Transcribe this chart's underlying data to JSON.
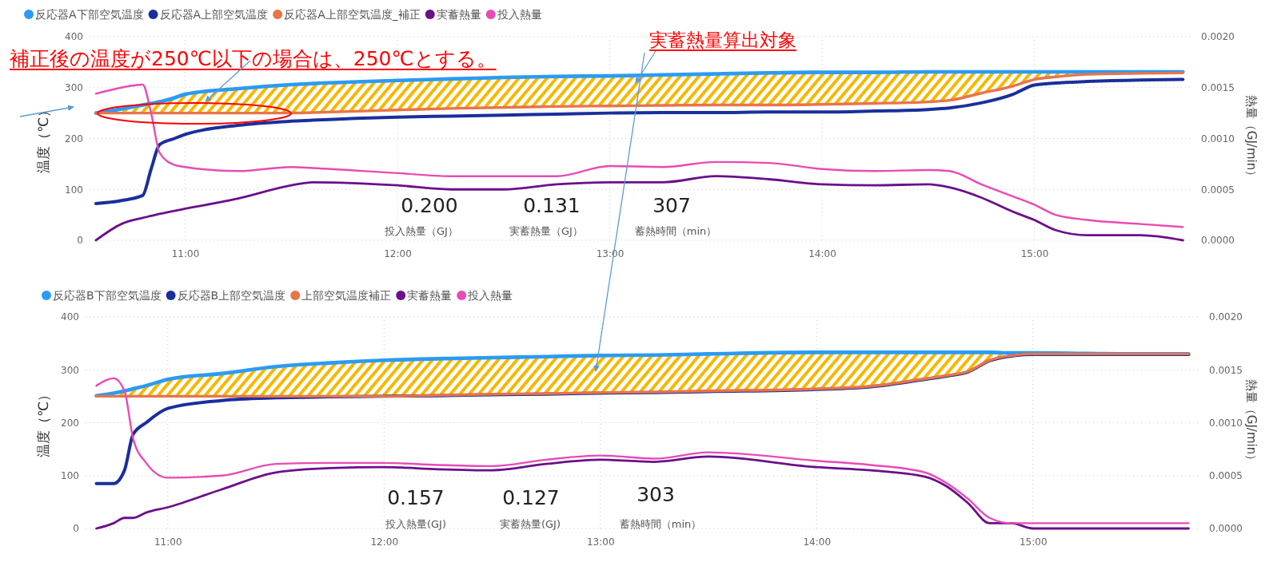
{
  "chart_data": [
    {
      "type": "line",
      "x": [
        10.58,
        10.7,
        10.8,
        10.84,
        10.88,
        10.95,
        11.0,
        11.25,
        11.5,
        11.6,
        12.0,
        12.25,
        12.5,
        12.75,
        13.0,
        13.25,
        13.5,
        13.75,
        14.0,
        14.25,
        14.5,
        14.6,
        14.75,
        14.9,
        15.0,
        15.1,
        15.25,
        15.5,
        15.7
      ],
      "series": [
        {
          "name": "反応器A下部空気温度",
          "color": "#2b9bf4",
          "values": [
            250,
            258,
            266,
            269,
            272,
            280,
            287,
            298,
            306,
            308,
            314,
            317,
            320,
            322,
            323,
            325,
            327,
            329,
            330,
            330,
            331,
            331,
            331,
            331,
            331,
            331,
            331,
            331,
            331
          ]
        },
        {
          "name": "反応器A上部空気温度",
          "color": "#1a2f9c",
          "values": [
            72,
            78,
            88,
            140,
            188,
            200,
            208,
            226,
            234,
            236,
            242,
            244,
            246,
            248,
            250,
            251,
            251,
            252,
            252,
            254,
            257,
            260,
            270,
            287,
            305,
            309,
            312,
            315,
            316
          ]
        },
        {
          "name": "反応器A上部空気温度_補正",
          "color": "#e8744a",
          "values": [
            250,
            250,
            250,
            250,
            250,
            250,
            250,
            250,
            250,
            251,
            256,
            259,
            261,
            263,
            264,
            265,
            266,
            266,
            267,
            269,
            272,
            275,
            289,
            303,
            316,
            321,
            326,
            328,
            329
          ],
          "lower": [
            250,
            250,
            250,
            250,
            250,
            250,
            250,
            250,
            250,
            251,
            256,
            259,
            261,
            263,
            264,
            265,
            266,
            266,
            267,
            269,
            272,
            275,
            289,
            303,
            316,
            321,
            326,
            328,
            329
          ],
          "upper": [
            250,
            258,
            266,
            269,
            272,
            280,
            287,
            298,
            306,
            308,
            314,
            317,
            320,
            322,
            323,
            325,
            327,
            329,
            330,
            330,
            331,
            331,
            331,
            331,
            331,
            331,
            331,
            331,
            331
          ]
        },
        {
          "name": "実蓄熱量",
          "color": "#6b0f8a",
          "axis": "y2",
          "values": [
            0,
            0.00016,
            0.00022,
            0.00024,
            0.00026,
            0.00029,
            0.00031,
            0.00041,
            0.00054,
            0.00057,
            0.00054,
            0.0005,
            0.0005,
            0.00055,
            0.00057,
            0.00057,
            0.00063,
            0.0006,
            0.00055,
            0.00054,
            0.00055,
            0.00052,
            0.00042,
            0.00028,
            0.0002,
            0.0001,
            5e-05,
            5e-05,
            0
          ]
        },
        {
          "name": "投入熱量",
          "color": "#e84bb4",
          "axis": "y2",
          "values": [
            0.00144,
            0.0015,
            0.00153,
            0.00125,
            0.00086,
            0.00074,
            0.00072,
            0.00068,
            0.00072,
            0.00071,
            0.00066,
            0.00063,
            0.00063,
            0.00063,
            0.00073,
            0.00072,
            0.00077,
            0.00076,
            0.0007,
            0.00068,
            0.00069,
            0.00068,
            0.00055,
            0.00043,
            0.00035,
            0.00025,
            0.0002,
            0.00016,
            0.00013
          ]
        }
      ],
      "xlim": [
        10.55,
        15.74
      ],
      "xticks": [
        {
          "value": 11,
          "label": "11:00"
        },
        {
          "value": 12,
          "label": "12:00"
        },
        {
          "value": 13,
          "label": "13:00"
        },
        {
          "value": 14,
          "label": "14:00"
        },
        {
          "value": 15,
          "label": "15:00"
        }
      ],
      "ylim": [
        0,
        400
      ],
      "yticks": [
        0,
        100,
        200,
        300,
        400
      ],
      "y2lim": [
        0,
        0.002
      ],
      "y2ticks": [
        {
          "value": 0,
          "label": "0.0000"
        },
        {
          "value": 0.0005,
          "label": "0.0005"
        },
        {
          "value": 0.001,
          "label": "0.0010"
        },
        {
          "value": 0.0015,
          "label": "0.0015"
        },
        {
          "value": 0.002,
          "label": "0.0020"
        }
      ],
      "ylabel": "温度（℃）",
      "y2label": "熱量（GJ/min）",
      "grid": true,
      "legend": "top left",
      "annotations": [
        "補正後の温度が250℃以下の場合は、250℃とする。",
        "実蓄熱量算出対象",
        "0.200",
        "投入熱量（GJ）",
        "0.131",
        "実蓄熱量（GJ）",
        "307",
        "蓄熱時間（min）"
      ]
    },
    {
      "type": "line",
      "x": [
        10.67,
        10.75,
        10.8,
        10.84,
        10.9,
        11.0,
        11.25,
        11.5,
        11.75,
        12.0,
        12.25,
        12.5,
        12.75,
        13.0,
        13.25,
        13.5,
        14.0,
        14.25,
        14.5,
        14.6,
        14.7,
        14.8,
        14.9,
        15.0,
        15.25,
        15.5,
        15.72
      ],
      "series": [
        {
          "name": "反応器B下部空気温度",
          "color": "#2b9bf4",
          "values": [
            251,
            256,
            260,
            264,
            270,
            282,
            293,
            306,
            313,
            318,
            321,
            323,
            325,
            327,
            328,
            330,
            333,
            333,
            333,
            333,
            333,
            333,
            332,
            332,
            331,
            330,
            330
          ]
        },
        {
          "name": "反応器B上部空気温度",
          "color": "#1a2f9c",
          "values": [
            85,
            85,
            110,
            178,
            200,
            227,
            242,
            247,
            249,
            250,
            251,
            253,
            254,
            256,
            257,
            259,
            263,
            268,
            282,
            288,
            296,
            317,
            326,
            329,
            329,
            329,
            329
          ]
        },
        {
          "name": "上部空気温度補正",
          "color": "#e8744a",
          "values": [
            250,
            250,
            250,
            250,
            250,
            250,
            250,
            250,
            250,
            250,
            252,
            254,
            255,
            257,
            258,
            260,
            264,
            269,
            283,
            289,
            297,
            318,
            327,
            330,
            330,
            330,
            330
          ],
          "lower": [
            250,
            250,
            250,
            250,
            250,
            250,
            250,
            250,
            250,
            250,
            252,
            254,
            255,
            257,
            258,
            260,
            264,
            269,
            283,
            289,
            297,
            318,
            327,
            330,
            330,
            330,
            330
          ],
          "upper": [
            251,
            256,
            260,
            264,
            270,
            282,
            293,
            306,
            313,
            318,
            321,
            323,
            325,
            327,
            328,
            330,
            333,
            333,
            333,
            333,
            333,
            333,
            332,
            332,
            331,
            330,
            330
          ]
        },
        {
          "name": "実蓄熱量",
          "color": "#6b0f8a",
          "axis": "y2",
          "values": [
            0,
            5e-05,
            0.0001,
            0.0001,
            0.00015,
            0.0002,
            0.00037,
            0.00053,
            0.00057,
            0.00058,
            0.00056,
            0.00055,
            0.00061,
            0.00065,
            0.00063,
            0.00068,
            0.00058,
            0.00055,
            0.00049,
            0.0004,
            0.00024,
            5e-05,
            5e-05,
            0,
            0,
            0,
            0
          ]
        },
        {
          "name": "投入熱量",
          "color": "#e84bb4",
          "axis": "y2",
          "values": [
            0.00135,
            0.00142,
            0.0013,
            0.00085,
            0.00062,
            0.00048,
            0.0005,
            0.00061,
            0.00062,
            0.00062,
            0.0006,
            0.00059,
            0.00065,
            0.00069,
            0.00066,
            0.00072,
            0.00064,
            0.0006,
            0.00053,
            0.00043,
            0.00028,
            0.0001,
            5e-05,
            5e-05,
            5e-05,
            5e-05,
            5e-05
          ]
        }
      ],
      "xlim": [
        10.62,
        15.77
      ],
      "xticks": [
        {
          "value": 11,
          "label": "11:00"
        },
        {
          "value": 12,
          "label": "12:00"
        },
        {
          "value": 13,
          "label": "13:00"
        },
        {
          "value": 14,
          "label": "14:00"
        },
        {
          "value": 15,
          "label": "15:00"
        }
      ],
      "ylim": [
        0,
        400
      ],
      "yticks": [
        0,
        100,
        200,
        300,
        400
      ],
      "y2lim": [
        0,
        0.002
      ],
      "y2ticks": [
        {
          "value": 0,
          "label": "0.0000"
        },
        {
          "value": 0.0005,
          "label": "0.0005"
        },
        {
          "value": 0.001,
          "label": "0.0010"
        },
        {
          "value": 0.0015,
          "label": "0.0015"
        },
        {
          "value": 0.002,
          "label": "0.0020"
        }
      ],
      "ylabel": "温度（℃）",
      "y2label": "熱量（GJ/min）",
      "grid": true,
      "legend": "top left",
      "annotations": [
        "0.157",
        "投入熱量(GJ)",
        "0.127",
        "実蓄熱量(GJ)",
        "303",
        "蓄熱時間（min）"
      ]
    }
  ]
}
